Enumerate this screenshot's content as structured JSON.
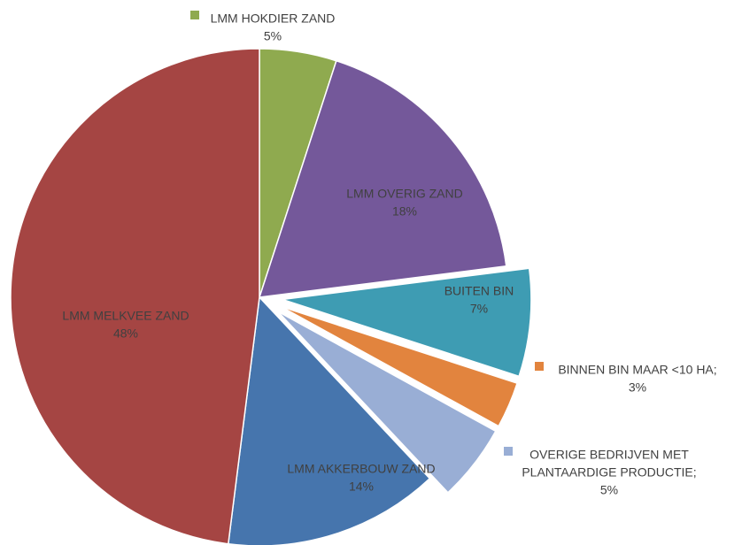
{
  "chart_data": {
    "type": "pie",
    "title": "",
    "slices": [
      {
        "label": "LMM HOKDIER ZAND",
        "percent_label": "5%",
        "value": 5,
        "color": "#8faa4f",
        "exploded": false,
        "label_style": "outside-marker"
      },
      {
        "label": "LMM OVERIG ZAND",
        "percent_label": "18%",
        "value": 18,
        "color": "#74589a",
        "exploded": false,
        "label_style": "inside"
      },
      {
        "label": "BUITEN BIN",
        "percent_label": "7%",
        "value": 7,
        "color": "#3e9cb3",
        "exploded": true,
        "label_style": "inside"
      },
      {
        "label": "BINNEN BIN MAAR <10 HA;",
        "percent_label": "3%",
        "value": 3,
        "color": "#e2843e",
        "exploded": true,
        "label_style": "outside-marker"
      },
      {
        "label": "OVERIGE BEDRIJVEN MET PLANTAARDIGE PRODUCTIE;",
        "percent_label": "5%",
        "value": 5,
        "color": "#99aed5",
        "exploded": true,
        "label_style": "outside-marker"
      },
      {
        "label": "LMM AKKERBOUW ZAND",
        "percent_label": "14%",
        "value": 14,
        "color": "#4675ad",
        "exploded": false,
        "label_style": "inside"
      },
      {
        "label": "LMM MELKVEE ZAND",
        "percent_label": "48%",
        "value": 48,
        "color": "#a54543",
        "exploded": false,
        "label_style": "inside"
      }
    ]
  }
}
